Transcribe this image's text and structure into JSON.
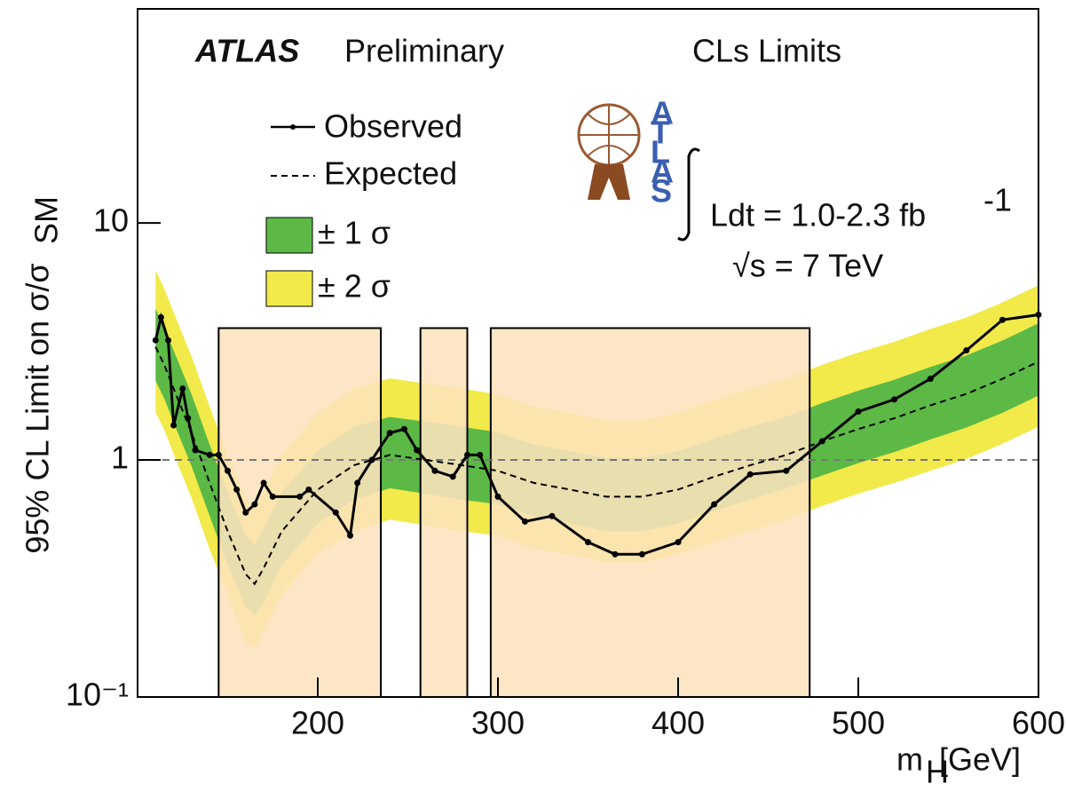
{
  "chart_data": {
    "type": "line",
    "title": "ATLAS",
    "subtitle": "Preliminary",
    "method": "CLs Limits",
    "logo_letters": [
      "A",
      "T",
      "L",
      "A",
      "S"
    ],
    "lumi": "Ldt = 1.0-2.3 fb",
    "lumi_sup": "-1",
    "energy": "√s = 7 TeV",
    "ylabel": "95% CL Limit on σ/σ",
    "ylabel_sub": "SM",
    "xlabel": "m",
    "xlabel_sub": "H",
    "xlabel_unit": " [GeV]",
    "log_y": true,
    "xlim": [
      100,
      600
    ],
    "ylim": [
      0.1,
      80
    ],
    "xticks": [
      200,
      300,
      400,
      500,
      600
    ],
    "yticks": [
      {
        "value": 0.1,
        "label": "10⁻¹"
      },
      1,
      10
    ],
    "reference_line": 1,
    "bands_x": [
      110,
      115,
      120,
      130,
      140,
      150,
      160,
      165,
      170,
      180,
      200,
      220,
      240,
      260,
      280,
      300,
      320,
      340,
      360,
      380,
      400,
      420,
      440,
      460,
      480,
      500,
      520,
      540,
      560,
      580,
      600
    ],
    "bands": [
      {
        "name": "± 2 σ",
        "color": "#f2ea4a",
        "low": [
          1.59,
          1.33,
          1.06,
          0.69,
          0.42,
          0.27,
          0.17,
          0.16,
          0.19,
          0.27,
          0.4,
          0.5,
          0.56,
          0.53,
          0.5,
          0.48,
          0.42,
          0.4,
          0.37,
          0.37,
          0.4,
          0.45,
          0.5,
          0.56,
          0.64,
          0.72,
          0.8,
          0.9,
          1.01,
          1.17,
          1.38
        ],
        "high": [
          6.3,
          5.25,
          4.2,
          2.73,
          1.68,
          1.05,
          0.69,
          0.63,
          0.74,
          1.05,
          1.58,
          2.0,
          2.21,
          2.1,
          2.0,
          1.89,
          1.68,
          1.58,
          1.47,
          1.47,
          1.58,
          1.79,
          2.0,
          2.21,
          2.52,
          2.84,
          3.15,
          3.57,
          3.99,
          4.62,
          5.46
        ]
      },
      {
        "name": "± 1 σ",
        "color": "#5cb946",
        "low": [
          2.16,
          1.8,
          1.44,
          0.94,
          0.58,
          0.36,
          0.24,
          0.22,
          0.25,
          0.36,
          0.54,
          0.68,
          0.76,
          0.72,
          0.68,
          0.65,
          0.58,
          0.54,
          0.5,
          0.5,
          0.54,
          0.61,
          0.68,
          0.76,
          0.86,
          0.97,
          1.08,
          1.22,
          1.37,
          1.58,
          1.87
        ],
        "high": [
          4.35,
          3.63,
          2.9,
          1.89,
          1.16,
          0.73,
          0.48,
          0.44,
          0.51,
          0.73,
          1.09,
          1.38,
          1.52,
          1.45,
          1.38,
          1.31,
          1.16,
          1.09,
          1.02,
          1.02,
          1.09,
          1.23,
          1.38,
          1.52,
          1.74,
          1.96,
          2.18,
          2.47,
          2.76,
          3.19,
          3.77
        ]
      }
    ],
    "excluded": [
      {
        "xmin": 145,
        "xmax": 235,
        "ymax": 3.6
      },
      {
        "xmin": 257,
        "xmax": 283,
        "ymax": 3.6
      },
      {
        "xmin": 296,
        "xmax": 473,
        "ymax": 3.6
      }
    ],
    "series": [
      {
        "name": "Expected",
        "color": "#000000",
        "dashed": true,
        "x": [
          110,
          115,
          120,
          130,
          140,
          150,
          160,
          165,
          170,
          180,
          200,
          220,
          240,
          260,
          280,
          300,
          320,
          340,
          360,
          380,
          400,
          420,
          440,
          460,
          480,
          500,
          520,
          540,
          560,
          580,
          600
        ],
        "values": [
          3.0,
          2.5,
          2.0,
          1.3,
          0.8,
          0.5,
          0.33,
          0.3,
          0.35,
          0.5,
          0.75,
          0.95,
          1.05,
          1.0,
          0.95,
          0.9,
          0.8,
          0.75,
          0.7,
          0.7,
          0.75,
          0.85,
          0.95,
          1.05,
          1.2,
          1.35,
          1.5,
          1.7,
          1.9,
          2.2,
          2.6
        ]
      },
      {
        "name": "Observed",
        "color": "#000000",
        "dashed": false,
        "x": [
          110,
          113,
          117,
          120,
          125,
          128,
          132,
          140,
          145,
          150,
          155,
          160,
          165,
          170,
          175,
          190,
          195,
          210,
          218,
          222,
          230,
          240,
          248,
          255,
          265,
          275,
          283,
          290,
          300,
          315,
          330,
          350,
          365,
          380,
          400,
          420,
          440,
          460,
          480,
          500,
          520,
          540,
          560,
          580,
          600
        ],
        "values": [
          3.2,
          4.0,
          3.2,
          1.4,
          2.0,
          1.5,
          1.1,
          1.05,
          1.05,
          0.9,
          0.75,
          0.6,
          0.65,
          0.8,
          0.7,
          0.7,
          0.75,
          0.6,
          0.48,
          0.8,
          1.0,
          1.3,
          1.35,
          1.1,
          0.9,
          0.85,
          1.05,
          1.05,
          0.7,
          0.55,
          0.58,
          0.45,
          0.4,
          0.4,
          0.45,
          0.65,
          0.87,
          0.9,
          1.2,
          1.6,
          1.8,
          2.2,
          2.9,
          3.9,
          4.1
        ]
      }
    ]
  }
}
